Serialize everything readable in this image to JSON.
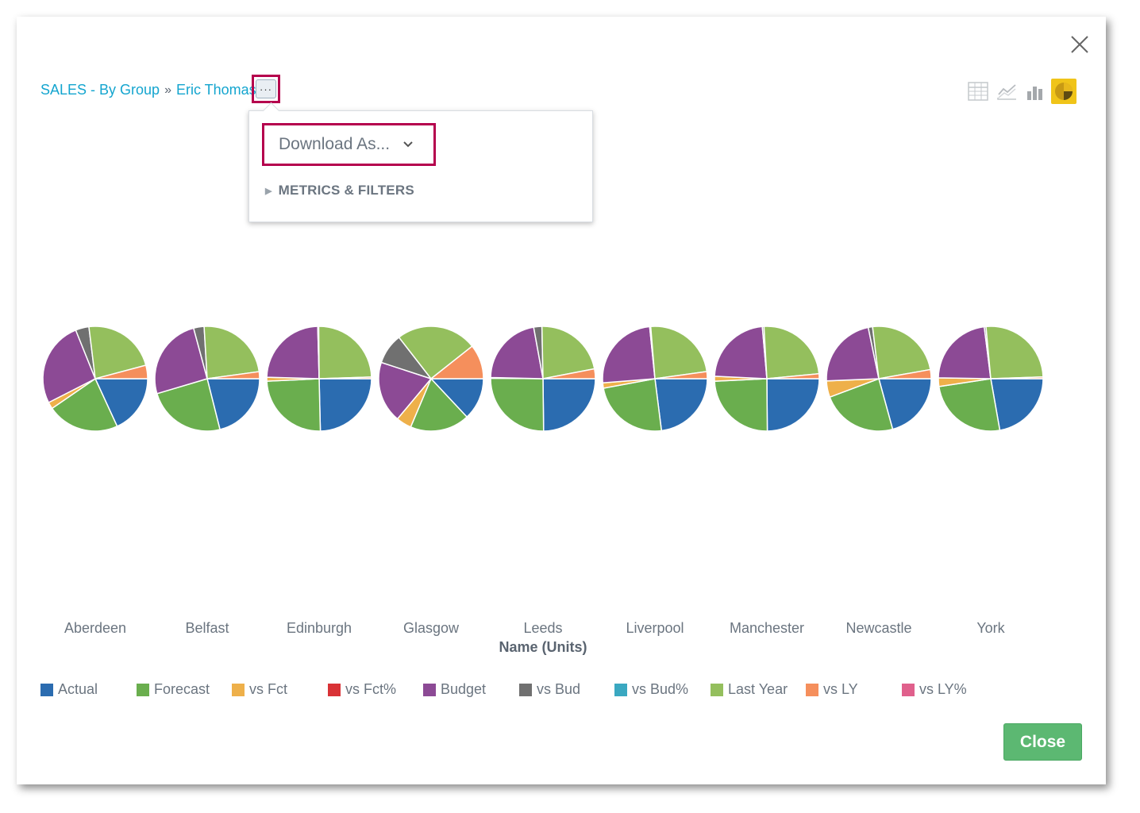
{
  "breadcrumb": {
    "root": "SALES - By Group",
    "separator": "»",
    "current": "Eric Thomas"
  },
  "more_button_label": "···",
  "view_toggles": [
    "table-icon",
    "line-chart-icon",
    "bar-chart-icon",
    "pie-chart-icon"
  ],
  "active_view": "pie-chart-icon",
  "menu": {
    "download_label": "Download As...",
    "metrics_label": "METRICS & FILTERS"
  },
  "close_button": "Close",
  "chart_data": {
    "type": "pie",
    "xlabel": "Name (Units)",
    "categories": [
      "Aberdeen",
      "Belfast",
      "Edinburgh",
      "Glasgow",
      "Leeds",
      "Liverpool",
      "Manchester",
      "Newcastle",
      "York"
    ],
    "series": [
      {
        "name": "Actual",
        "color": "#2b6cb0",
        "values": [
          17.5,
          19.5,
          24.5,
          11.0,
          24.5,
          21.0,
          24.5,
          18.5,
          21.0
        ]
      },
      {
        "name": "Forecast",
        "color": "#6aae4e",
        "values": [
          21.5,
          22.5,
          24.5,
          15.5,
          25.0,
          22.0,
          24.0,
          21.0,
          24.0
        ]
      },
      {
        "name": "vs Fct",
        "color": "#eeb04a",
        "values": [
          2.0,
          0,
          1.2,
          4.0,
          0.2,
          1.5,
          1.5,
          4.5,
          2.5
        ]
      },
      {
        "name": "vs Fct%",
        "color": "#d93236",
        "values": [
          0,
          0,
          0,
          0,
          0,
          0,
          0,
          0,
          0
        ]
      },
      {
        "name": "Budget",
        "color": "#8c4a95",
        "values": [
          25.5,
          23.5,
          24.0,
          16.0,
          21.5,
          22.5,
          22.5,
          20.0,
          21.5
        ]
      },
      {
        "name": "vs Bud",
        "color": "#707070",
        "values": [
          4.0,
          3.0,
          0.3,
          8.0,
          2.5,
          0.3,
          0.5,
          1.2,
          0.5
        ]
      },
      {
        "name": "vs Bud%",
        "color": "#3aa8c1",
        "values": [
          0,
          0,
          0,
          0,
          0,
          0,
          0,
          0,
          0
        ]
      },
      {
        "name": "Last Year",
        "color": "#94bf5d",
        "values": [
          22.0,
          22.0,
          24.5,
          21.0,
          22.0,
          22.0,
          24.0,
          21.5,
          24.5
        ]
      },
      {
        "name": "vs LY",
        "color": "#f58f5c",
        "values": [
          4.0,
          2.0,
          0.5,
          9.0,
          3.0,
          2.0,
          1.5,
          2.5,
          0.5
        ]
      },
      {
        "name": "vs LY%",
        "color": "#e0608c",
        "values": [
          0,
          0,
          0,
          0,
          0,
          0,
          0,
          0,
          0
        ]
      }
    ]
  }
}
